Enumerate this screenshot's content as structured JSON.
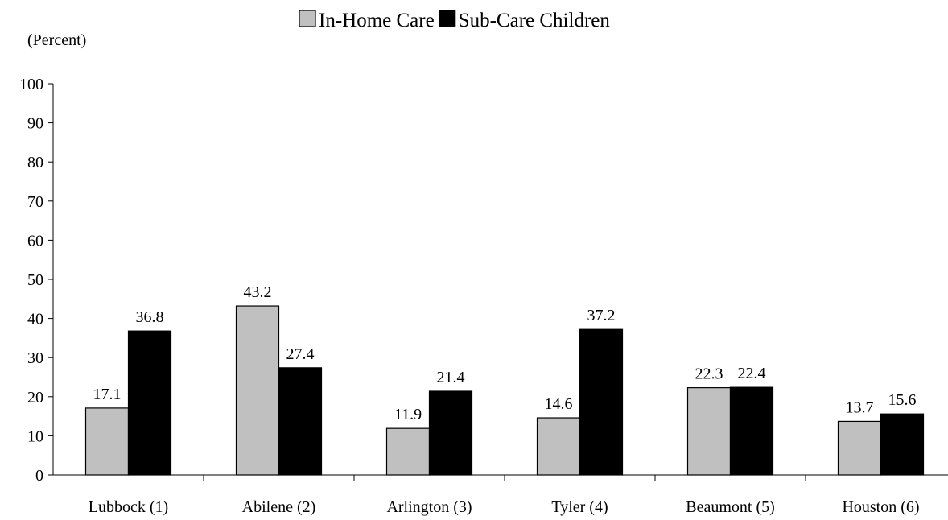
{
  "chart_data": {
    "type": "bar",
    "ylabel": "(Percent)",
    "ylim": [
      0,
      100
    ],
    "y_ticks": [
      0,
      10,
      20,
      30,
      40,
      50,
      60,
      70,
      80,
      90,
      100
    ],
    "grid": false,
    "legend_position": "top",
    "categories": [
      "Lubbock (1)",
      "Abilene (2)",
      "Arlington (3)",
      "Tyler (4)",
      "Beaumont (5)",
      "Houston (6)"
    ],
    "series": [
      {
        "name": "In-Home Care",
        "color": "#c0c0c0",
        "values": [
          17.1,
          43.2,
          11.9,
          14.6,
          22.3,
          13.7
        ]
      },
      {
        "name": "Sub-Care Children",
        "color": "#000000",
        "values": [
          36.8,
          27.4,
          21.4,
          37.2,
          22.4,
          15.6
        ]
      }
    ]
  }
}
